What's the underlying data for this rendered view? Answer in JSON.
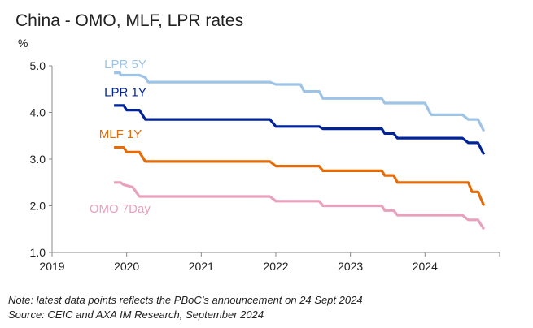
{
  "title": "China - OMO, MLF, LPR rates",
  "notes": {
    "line1": "Note: latest data points reflects the PBoC’s announcement on 24 Sept 2024",
    "line2": "Source: CEIC and AXA IM Research, September 2024"
  },
  "chart_data": {
    "type": "line",
    "title": "China - OMO, MLF, LPR rates",
    "ylabel": "%",
    "xlabel": "",
    "ylim": [
      1.0,
      5.0
    ],
    "yticks": [
      "1.0",
      "2.0",
      "3.0",
      "4.0",
      "5.0"
    ],
    "xlim": [
      2019,
      2025
    ],
    "xticks": [
      "2019",
      "2020",
      "2021",
      "2022",
      "2023",
      "2024"
    ],
    "grid": false,
    "legend": "inline labels",
    "series": [
      {
        "name": "LPR 5Y",
        "color": "#9dc3e6",
        "points": [
          [
            2019.83,
            4.85
          ],
          [
            2019.91,
            4.85
          ],
          [
            2019.92,
            4.8
          ],
          [
            2020.17,
            4.8
          ],
          [
            2020.25,
            4.75
          ],
          [
            2020.29,
            4.65
          ],
          [
            2021.92,
            4.65
          ],
          [
            2022.0,
            4.6
          ],
          [
            2022.33,
            4.6
          ],
          [
            2022.38,
            4.45
          ],
          [
            2022.58,
            4.45
          ],
          [
            2022.63,
            4.3
          ],
          [
            2023.42,
            4.3
          ],
          [
            2023.46,
            4.2
          ],
          [
            2024.0,
            4.2
          ],
          [
            2024.08,
            3.95
          ],
          [
            2024.5,
            3.95
          ],
          [
            2024.58,
            3.85
          ],
          [
            2024.71,
            3.85
          ],
          [
            2024.79,
            3.6
          ]
        ]
      },
      {
        "name": "LPR 1Y",
        "color": "#002398",
        "points": [
          [
            2019.83,
            4.15
          ],
          [
            2019.96,
            4.15
          ],
          [
            2020.0,
            4.05
          ],
          [
            2020.17,
            4.05
          ],
          [
            2020.25,
            3.85
          ],
          [
            2021.92,
            3.85
          ],
          [
            2022.0,
            3.7
          ],
          [
            2022.58,
            3.7
          ],
          [
            2022.63,
            3.65
          ],
          [
            2023.42,
            3.65
          ],
          [
            2023.46,
            3.55
          ],
          [
            2023.58,
            3.55
          ],
          [
            2023.63,
            3.45
          ],
          [
            2024.5,
            3.45
          ],
          [
            2024.58,
            3.35
          ],
          [
            2024.71,
            3.35
          ],
          [
            2024.79,
            3.1
          ]
        ]
      },
      {
        "name": "MLF 1Y",
        "color": "#e36c09",
        "points": [
          [
            2019.83,
            3.25
          ],
          [
            2019.96,
            3.25
          ],
          [
            2020.0,
            3.15
          ],
          [
            2020.17,
            3.15
          ],
          [
            2020.25,
            2.95
          ],
          [
            2021.92,
            2.95
          ],
          [
            2022.0,
            2.85
          ],
          [
            2022.58,
            2.85
          ],
          [
            2022.63,
            2.75
          ],
          [
            2023.42,
            2.75
          ],
          [
            2023.46,
            2.65
          ],
          [
            2023.58,
            2.65
          ],
          [
            2023.63,
            2.5
          ],
          [
            2024.58,
            2.5
          ],
          [
            2024.63,
            2.3
          ],
          [
            2024.71,
            2.3
          ],
          [
            2024.79,
            2.0
          ]
        ]
      },
      {
        "name": "OMO 7Day",
        "color": "#e8a0bc",
        "points": [
          [
            2019.83,
            2.5
          ],
          [
            2019.92,
            2.5
          ],
          [
            2019.96,
            2.45
          ],
          [
            2020.08,
            2.4
          ],
          [
            2020.17,
            2.2
          ],
          [
            2021.92,
            2.2
          ],
          [
            2022.0,
            2.1
          ],
          [
            2022.58,
            2.1
          ],
          [
            2022.63,
            2.0
          ],
          [
            2023.42,
            2.0
          ],
          [
            2023.46,
            1.9
          ],
          [
            2023.58,
            1.9
          ],
          [
            2023.63,
            1.8
          ],
          [
            2024.5,
            1.8
          ],
          [
            2024.58,
            1.7
          ],
          [
            2024.71,
            1.7
          ],
          [
            2024.79,
            1.5
          ]
        ]
      }
    ],
    "labels": [
      {
        "text": "LPR 5Y",
        "series": "LPR 5Y",
        "x": 2019.7,
        "y": 4.95
      },
      {
        "text": "LPR 1Y",
        "series": "LPR 1Y",
        "x": 2019.7,
        "y": 4.35
      },
      {
        "text": "MLF 1Y",
        "series": "MLF 1Y",
        "x": 2019.63,
        "y": 3.45
      },
      {
        "text": "OMO 7Day",
        "series": "OMO 7Day",
        "x": 2019.5,
        "y": 1.85
      }
    ]
  }
}
